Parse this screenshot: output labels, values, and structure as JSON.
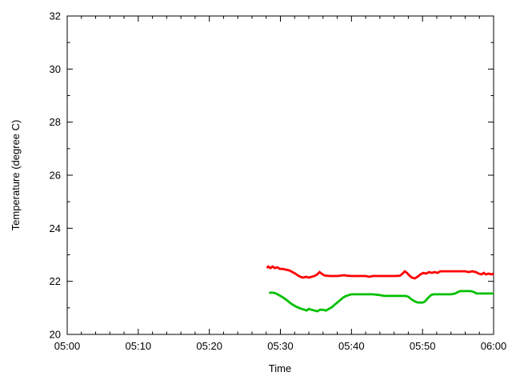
{
  "chart_data": {
    "type": "line",
    "title": "",
    "xlabel": "Time",
    "ylabel": "Temperature (degree C)",
    "x_axis": {
      "tick_labels": [
        "05:00",
        "05:10",
        "05:20",
        "05:30",
        "05:40",
        "05:50",
        "06:00"
      ],
      "range_minutes": [
        0,
        60
      ],
      "major_step_minutes": 10,
      "minor_step_minutes": 2
    },
    "y_axis": {
      "range": [
        20,
        32
      ],
      "major_step": 2,
      "minor_step": 1,
      "tick_labels": [
        "20",
        "22",
        "24",
        "26",
        "28",
        "30",
        "32"
      ]
    },
    "grid": false,
    "legend": "none",
    "background_color": "#ffffff",
    "axis_color": "#000000",
    "text_color": "#000000",
    "series": [
      {
        "name": "upper-temperature-red",
        "color": "#ff0000",
        "points": [
          [
            28.1,
            22.5
          ],
          [
            28.3,
            22.56
          ],
          [
            28.6,
            22.5
          ],
          [
            28.9,
            22.56
          ],
          [
            29.2,
            22.5
          ],
          [
            29.6,
            22.53
          ],
          [
            29.9,
            22.47
          ],
          [
            30.3,
            22.47
          ],
          [
            30.8,
            22.44
          ],
          [
            31.3,
            22.41
          ],
          [
            31.7,
            22.35
          ],
          [
            32.1,
            22.29
          ],
          [
            32.4,
            22.23
          ],
          [
            32.8,
            22.17
          ],
          [
            33.2,
            22.14
          ],
          [
            33.6,
            22.17
          ],
          [
            34.0,
            22.14
          ],
          [
            34.4,
            22.17
          ],
          [
            34.8,
            22.2
          ],
          [
            35.2,
            22.26
          ],
          [
            35.5,
            22.35
          ],
          [
            35.8,
            22.29
          ],
          [
            36.1,
            22.23
          ],
          [
            36.5,
            22.21
          ],
          [
            37.0,
            22.2
          ],
          [
            38.0,
            22.2
          ],
          [
            39.0,
            22.23
          ],
          [
            39.4,
            22.21
          ],
          [
            40.0,
            22.2
          ],
          [
            41.0,
            22.2
          ],
          [
            42.0,
            22.2
          ],
          [
            42.5,
            22.17
          ],
          [
            43.0,
            22.2
          ],
          [
            44.0,
            22.2
          ],
          [
            45.0,
            22.2
          ],
          [
            46.0,
            22.2
          ],
          [
            46.8,
            22.21
          ],
          [
            47.2,
            22.29
          ],
          [
            47.5,
            22.38
          ],
          [
            47.8,
            22.32
          ],
          [
            48.1,
            22.23
          ],
          [
            48.5,
            22.14
          ],
          [
            48.9,
            22.11
          ],
          [
            49.3,
            22.17
          ],
          [
            49.7,
            22.26
          ],
          [
            50.1,
            22.32
          ],
          [
            50.5,
            22.29
          ],
          [
            50.9,
            22.35
          ],
          [
            51.3,
            22.32
          ],
          [
            51.7,
            22.35
          ],
          [
            52.1,
            22.32
          ],
          [
            52.5,
            22.38
          ],
          [
            53.0,
            22.38
          ],
          [
            54.0,
            22.38
          ],
          [
            55.0,
            22.38
          ],
          [
            56.0,
            22.38
          ],
          [
            56.5,
            22.35
          ],
          [
            57.0,
            22.38
          ],
          [
            57.5,
            22.35
          ],
          [
            57.9,
            22.29
          ],
          [
            58.3,
            22.26
          ],
          [
            58.6,
            22.32
          ],
          [
            58.9,
            22.26
          ],
          [
            59.3,
            22.29
          ],
          [
            59.7,
            22.26
          ],
          [
            60.0,
            22.29
          ]
        ]
      },
      {
        "name": "lower-temperature-green",
        "color": "#00c000",
        "points": [
          [
            28.4,
            21.57
          ],
          [
            29.0,
            21.57
          ],
          [
            29.4,
            21.54
          ],
          [
            29.8,
            21.48
          ],
          [
            30.2,
            21.42
          ],
          [
            30.6,
            21.35
          ],
          [
            31.0,
            21.27
          ],
          [
            31.4,
            21.18
          ],
          [
            31.8,
            21.11
          ],
          [
            32.2,
            21.05
          ],
          [
            32.6,
            21.0
          ],
          [
            33.0,
            20.96
          ],
          [
            33.4,
            20.93
          ],
          [
            33.7,
            20.9
          ],
          [
            34.0,
            20.96
          ],
          [
            34.4,
            20.93
          ],
          [
            34.8,
            20.9
          ],
          [
            35.2,
            20.87
          ],
          [
            35.6,
            20.93
          ],
          [
            36.0,
            20.93
          ],
          [
            36.4,
            20.9
          ],
          [
            36.8,
            20.96
          ],
          [
            37.2,
            21.02
          ],
          [
            37.6,
            21.11
          ],
          [
            38.0,
            21.2
          ],
          [
            38.4,
            21.29
          ],
          [
            38.8,
            21.38
          ],
          [
            39.2,
            21.44
          ],
          [
            39.6,
            21.48
          ],
          [
            40.0,
            21.51
          ],
          [
            41.0,
            21.51
          ],
          [
            42.0,
            21.51
          ],
          [
            43.0,
            21.51
          ],
          [
            44.0,
            21.48
          ],
          [
            44.6,
            21.45
          ],
          [
            45.0,
            21.45
          ],
          [
            46.0,
            21.45
          ],
          [
            47.0,
            21.45
          ],
          [
            47.6,
            21.45
          ],
          [
            48.0,
            21.42
          ],
          [
            48.4,
            21.33
          ],
          [
            48.8,
            21.26
          ],
          [
            49.2,
            21.21
          ],
          [
            49.6,
            21.2
          ],
          [
            50.0,
            21.2
          ],
          [
            50.3,
            21.23
          ],
          [
            50.6,
            21.32
          ],
          [
            50.9,
            21.41
          ],
          [
            51.2,
            21.48
          ],
          [
            51.5,
            21.51
          ],
          [
            52.0,
            21.51
          ],
          [
            53.0,
            21.51
          ],
          [
            54.0,
            21.51
          ],
          [
            54.6,
            21.54
          ],
          [
            55.0,
            21.6
          ],
          [
            55.3,
            21.63
          ],
          [
            56.0,
            21.63
          ],
          [
            56.8,
            21.63
          ],
          [
            57.2,
            21.6
          ],
          [
            57.6,
            21.54
          ],
          [
            58.0,
            21.54
          ],
          [
            59.0,
            21.54
          ],
          [
            60.0,
            21.54
          ]
        ]
      }
    ]
  }
}
